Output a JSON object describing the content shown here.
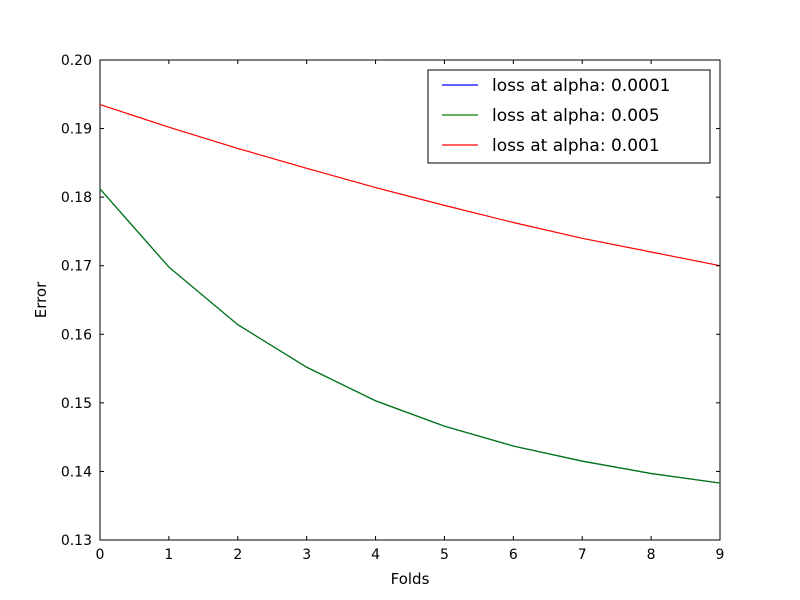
{
  "chart_data": {
    "type": "line",
    "xlabel": "Folds",
    "ylabel": "Error",
    "xlim": [
      0,
      9
    ],
    "ylim": [
      0.13,
      0.2
    ],
    "x_ticks": [
      "0",
      "1",
      "2",
      "3",
      "4",
      "5",
      "6",
      "7",
      "8",
      "9"
    ],
    "y_ticks": [
      "0.13",
      "0.14",
      "0.15",
      "0.16",
      "0.17",
      "0.18",
      "0.19",
      "0.20"
    ],
    "grid": false,
    "legend_position": "top-right",
    "x": [
      0,
      1,
      2,
      3,
      4,
      5,
      6,
      7,
      8,
      9
    ],
    "series": [
      {
        "name": "loss at alpha: 0.0001",
        "color": "#0000ff",
        "values": [
          0.1812,
          0.1698,
          0.1614,
          0.1552,
          0.1503,
          0.1466,
          0.1437,
          0.1415,
          0.1397,
          0.1383
        ]
      },
      {
        "name": "loss at alpha: 0.005",
        "color": "#008000",
        "values": [
          0.1812,
          0.1698,
          0.1614,
          0.1552,
          0.1503,
          0.1466,
          0.1437,
          0.1415,
          0.1397,
          0.1383
        ]
      },
      {
        "name": "loss at alpha: 0.001",
        "color": "#ff0000",
        "values": [
          0.1935,
          0.1902,
          0.1871,
          0.1842,
          0.1814,
          0.1788,
          0.1763,
          0.174,
          0.172,
          0.17
        ]
      }
    ]
  }
}
